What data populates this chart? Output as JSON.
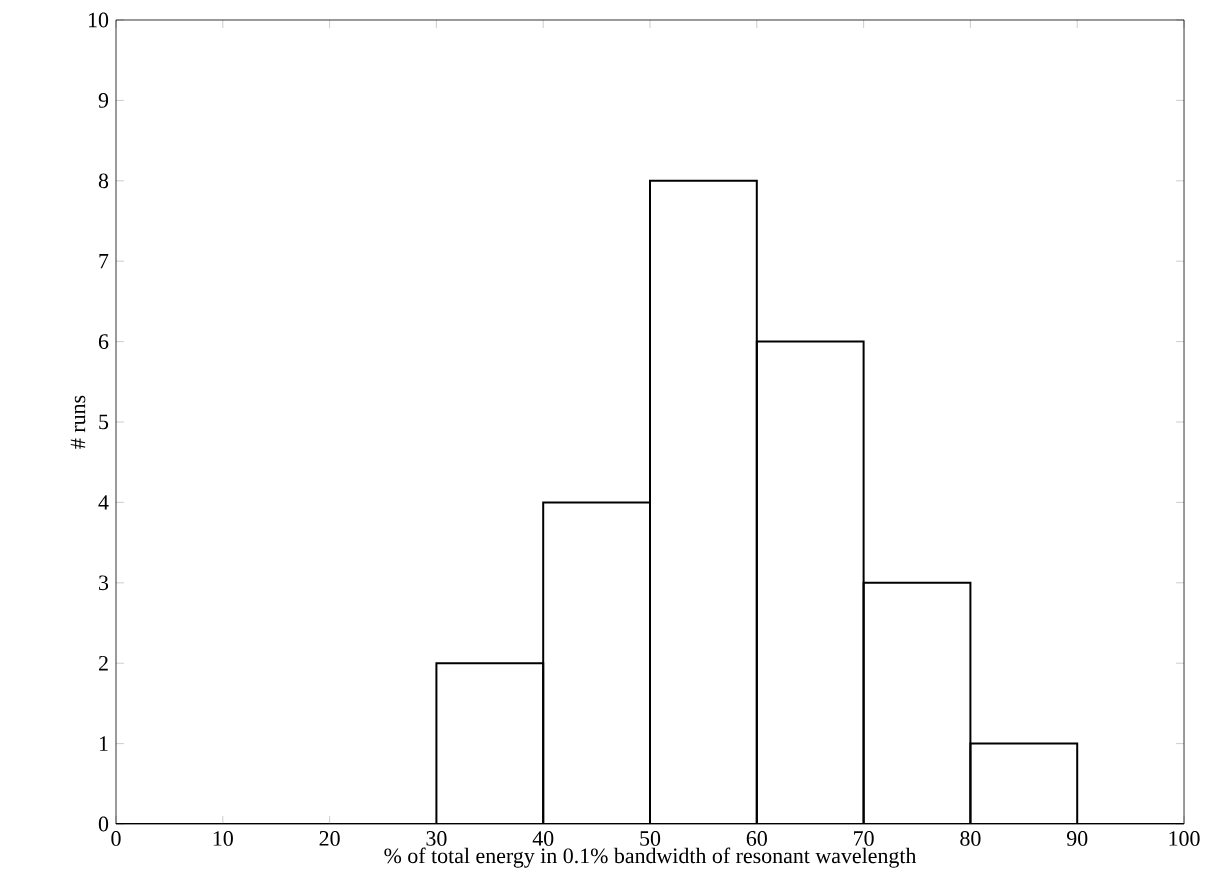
{
  "chart_data": {
    "type": "histogram",
    "xlabel": "% of total energy in 0.1% bandwidth of resonant wavelength",
    "ylabel": "# runs",
    "bins": [
      0,
      10,
      20,
      30,
      40,
      50,
      60,
      70,
      80,
      90,
      100
    ],
    "values": [
      0,
      0,
      0,
      2,
      4,
      8,
      6,
      3,
      1,
      0
    ],
    "color": "#000000",
    "xlim": [
      0,
      100
    ],
    "ylim": [
      0,
      10
    ],
    "xticks": [
      0,
      10,
      20,
      30,
      40,
      50,
      60,
      70,
      80,
      90,
      100
    ],
    "yticks": [
      0,
      1,
      2,
      3,
      4,
      5,
      6,
      7,
      8,
      9,
      10
    ],
    "grid": false
  }
}
